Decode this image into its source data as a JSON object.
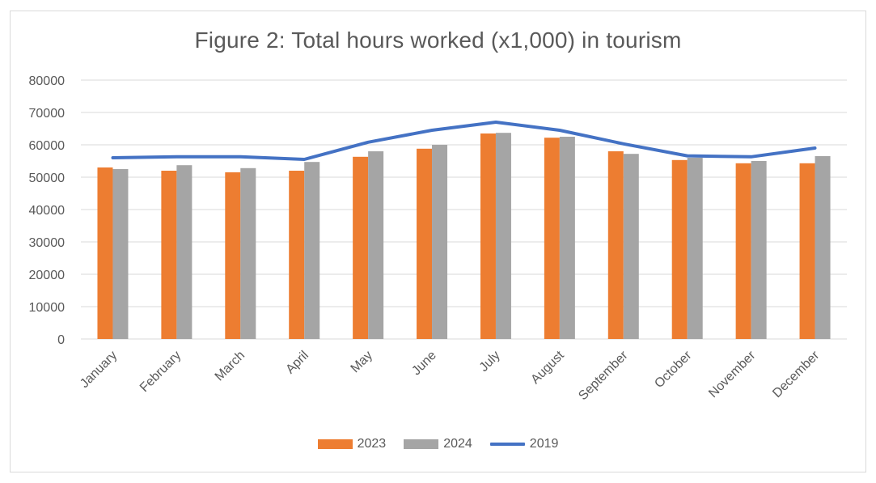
{
  "chart_data": {
    "type": "bar",
    "title": "Figure 2: Total hours worked (x1,000) in tourism",
    "xlabel": "",
    "ylabel": "",
    "ylim": [
      0,
      80000
    ],
    "yticks": [
      0,
      10000,
      20000,
      30000,
      40000,
      50000,
      60000,
      70000,
      80000
    ],
    "grid": true,
    "legend_position": "bottom",
    "categories": [
      "January",
      "February",
      "March",
      "April",
      "May",
      "June",
      "July",
      "August",
      "September",
      "October",
      "November",
      "December"
    ],
    "series": [
      {
        "name": "2023",
        "kind": "bar",
        "color": "#ED7D31",
        "values": [
          53000,
          52000,
          51500,
          52000,
          56300,
          58800,
          63500,
          62200,
          58000,
          55300,
          54300,
          54300
        ]
      },
      {
        "name": "2024",
        "kind": "bar",
        "color": "#A5A5A5",
        "values": [
          52500,
          53700,
          52800,
          54700,
          58000,
          60000,
          63700,
          62500,
          57200,
          56000,
          55000,
          56500
        ]
      },
      {
        "name": "2019",
        "kind": "line",
        "color": "#4472C4",
        "values": [
          56000,
          56300,
          56300,
          55500,
          60800,
          64500,
          67000,
          64500,
          60300,
          56600,
          56300,
          59000
        ]
      }
    ]
  }
}
